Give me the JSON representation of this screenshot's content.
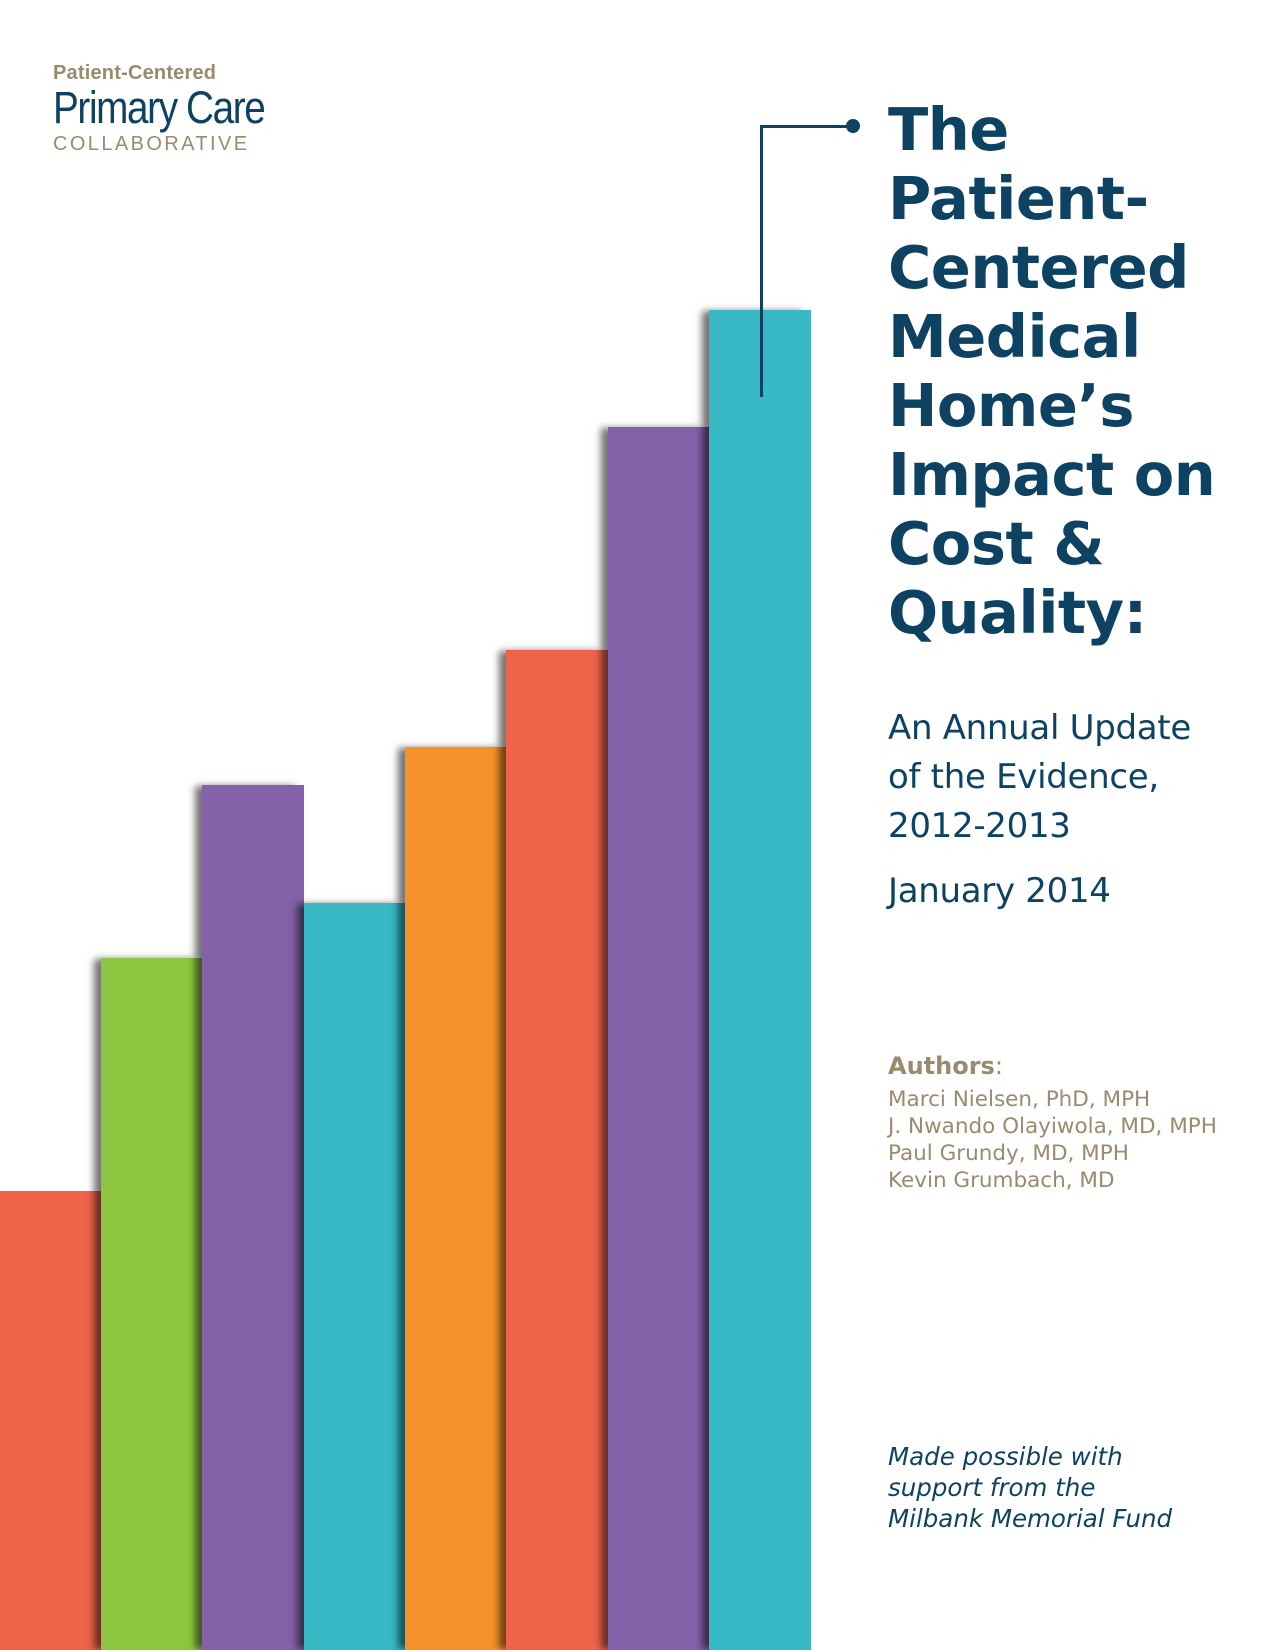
{
  "logo": {
    "top": "Patient-Centered",
    "main": "Primary Care",
    "sub": "COLLABORATIVE"
  },
  "title_lines": [
    "The",
    "Patient-",
    "Centered",
    "Medical",
    "Home’s",
    "Impact on",
    "Cost &",
    "Quality:"
  ],
  "subtitle_lines": [
    "An Annual Update",
    "of the Evidence,",
    "2012-2013"
  ],
  "date": "January 2014",
  "authors": {
    "heading": "Authors",
    "colon": ":",
    "names": [
      "Marci Nielsen, PhD, MPH",
      "J. Nwando Olayiwola, MD, MPH",
      "Paul Grundy, MD, MPH",
      "Kevin Grumbach, MD"
    ]
  },
  "support_lines": [
    "Made possible with",
    "support from the",
    "Milbank Memorial Fund"
  ],
  "colors": {
    "navy": "#0d4263",
    "tan": "#9a8a6e",
    "red": "#ef634b",
    "green": "#8dc641",
    "purple": "#8462a9",
    "teal": "#39b9c6",
    "orange": "#f6922a"
  },
  "decorative_bars": [
    {
      "color": "#ef634b"
    },
    {
      "color": "#8dc641"
    },
    {
      "color": "#8462a9"
    },
    {
      "color": "#39b9c6"
    },
    {
      "color": "#f6922a"
    },
    {
      "color": "#ef634b"
    },
    {
      "color": "#8462a9"
    },
    {
      "color": "#39b9c6"
    }
  ]
}
